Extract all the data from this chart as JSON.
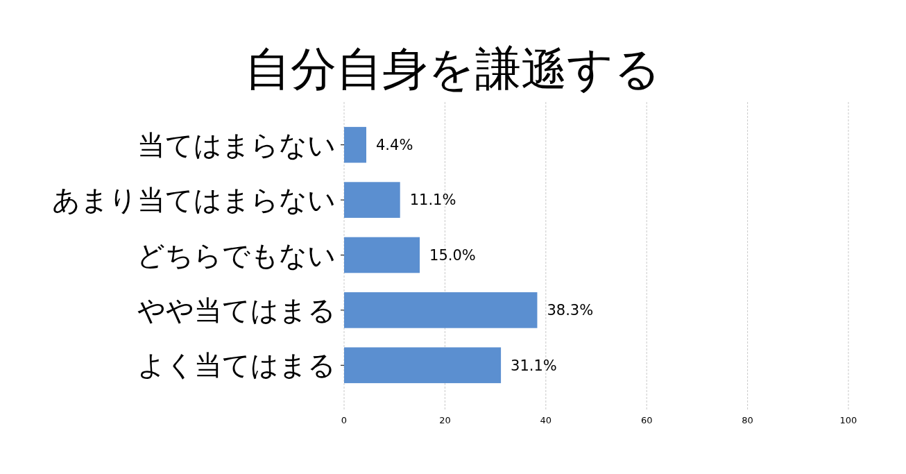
{
  "chart_data": {
    "type": "bar",
    "orientation": "horizontal",
    "title": "自分自身を謙遜する",
    "categories": [
      "当てはまらない",
      "あまり当てはまらない",
      "どちらでもない",
      "やや当てはまる",
      "よく当てはまる"
    ],
    "values": [
      4.4,
      11.1,
      15.0,
      38.3,
      31.1
    ],
    "value_labels": [
      "4.4%",
      "11.1%",
      "15.0%",
      "38.3%",
      "31.1%"
    ],
    "color": "#5b8fd0",
    "xlim": [
      0,
      100
    ],
    "xticks": [
      0,
      20,
      40,
      60,
      80,
      100
    ],
    "grid": "x"
  }
}
